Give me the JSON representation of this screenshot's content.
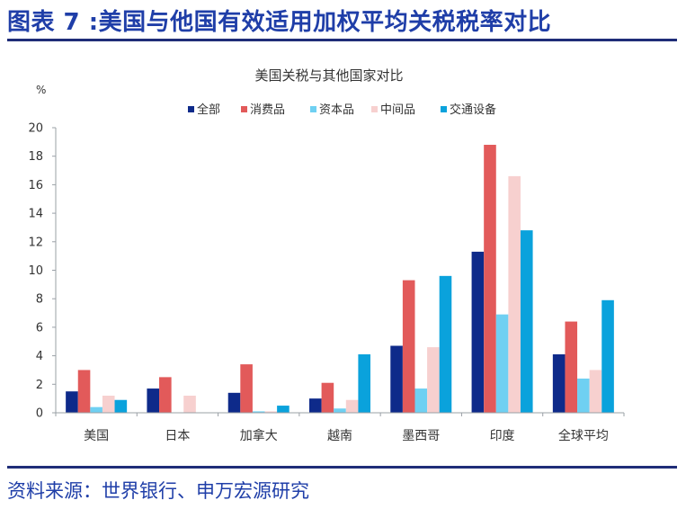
{
  "figure_title": "图表 7 :美国与他国有效适用加权平均关税税率对比",
  "source": "资料来源：世界银行、申万宏源研究",
  "colors": {
    "title_blue": "#1f3ea8",
    "rule": "#1f2d78",
    "axis": "#9aa0a6"
  },
  "chart_data": {
    "type": "bar",
    "title": "美国关税与其他国家对比",
    "ylabel": "%",
    "xlabel": "",
    "ylim": [
      0,
      20
    ],
    "yticks": [
      0,
      2,
      4,
      6,
      8,
      10,
      12,
      14,
      16,
      18,
      20
    ],
    "grid": false,
    "legend_position": "top",
    "categories": [
      "美国",
      "日本",
      "加拿大",
      "越南",
      "墨西哥",
      "印度",
      "全球平均"
    ],
    "series": [
      {
        "name": "全部",
        "color": "#0e2a8a",
        "values": [
          1.5,
          1.7,
          1.4,
          1.0,
          4.7,
          11.3,
          4.1
        ]
      },
      {
        "name": "消费品",
        "color": "#e25a5a",
        "values": [
          3.0,
          2.5,
          3.4,
          2.1,
          9.3,
          18.8,
          6.4
        ]
      },
      {
        "name": "资本品",
        "color": "#6fd0f2",
        "values": [
          0.4,
          0.0,
          0.1,
          0.3,
          1.7,
          6.9,
          2.4
        ]
      },
      {
        "name": "中间品",
        "color": "#f7d0cf",
        "values": [
          1.2,
          1.2,
          0.1,
          0.9,
          4.6,
          16.6,
          3.0
        ]
      },
      {
        "name": "交通设备",
        "color": "#0aa2dc",
        "values": [
          0.9,
          0.0,
          0.5,
          4.1,
          9.6,
          12.8,
          7.9
        ]
      }
    ]
  }
}
